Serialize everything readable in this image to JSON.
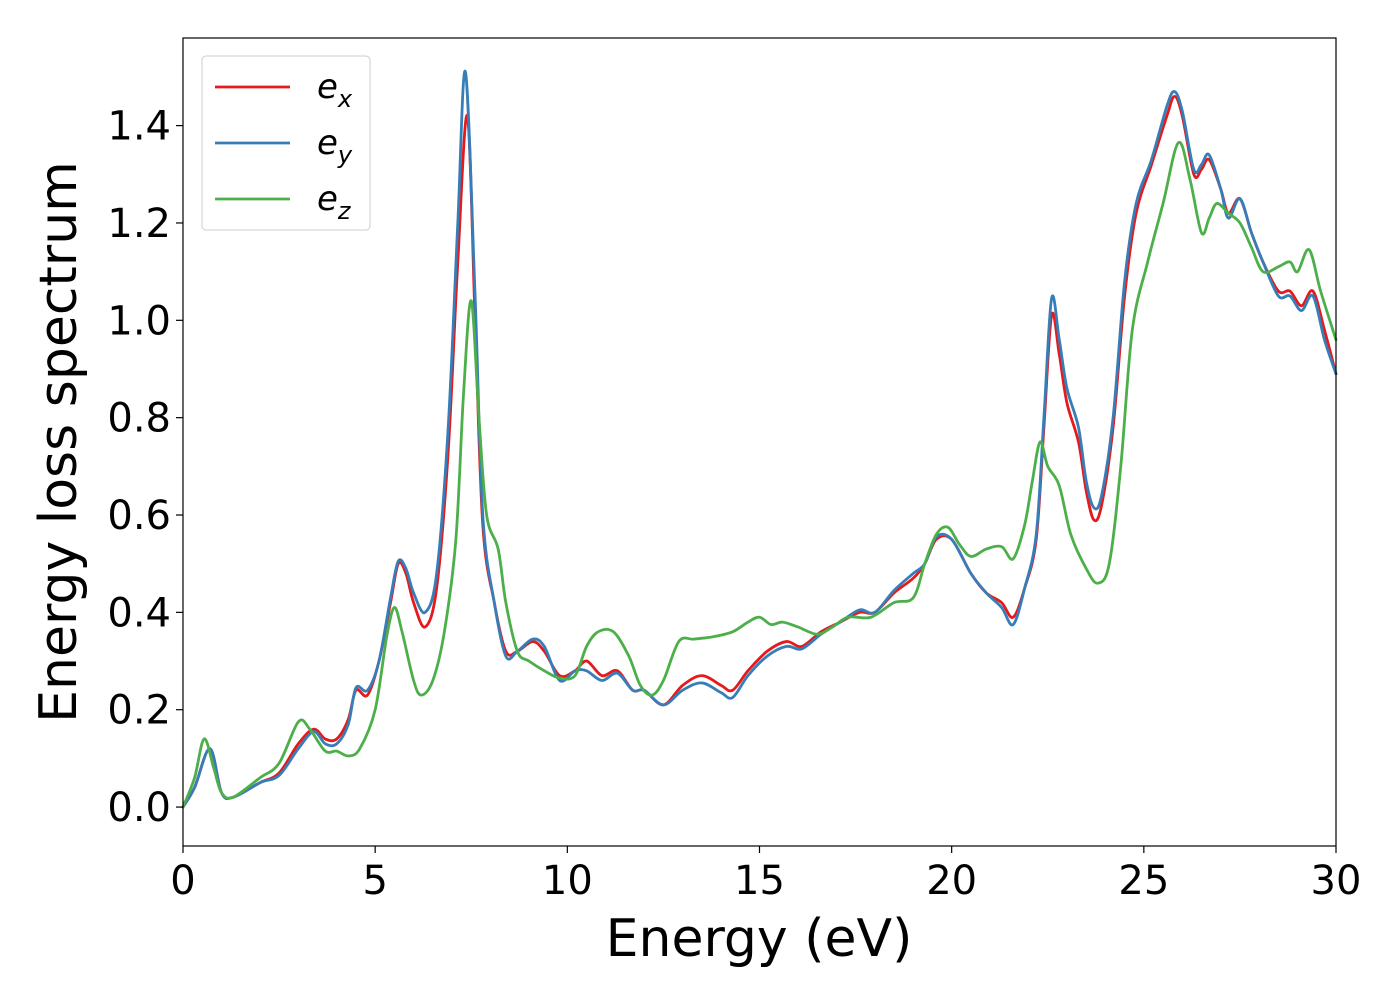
{
  "chart_data": {
    "type": "line",
    "xlabel": "Energy (eV)",
    "ylabel": "Energy loss spectrum",
    "xlim": [
      0,
      30
    ],
    "ylim": [
      -0.08,
      1.58
    ],
    "xticks": [
      0,
      5,
      10,
      15,
      20,
      25,
      30
    ],
    "xtick_labels": [
      "0",
      "5",
      "10",
      "15",
      "20",
      "25",
      "30"
    ],
    "yticks": [
      0.0,
      0.2,
      0.4,
      0.6,
      0.8,
      1.0,
      1.2,
      1.4
    ],
    "ytick_labels": [
      "0.0",
      "0.2",
      "0.4",
      "0.6",
      "0.8",
      "1.0",
      "1.2",
      "1.4"
    ],
    "grid": false,
    "legend_position": "top-left",
    "series": [
      {
        "name": "e_x",
        "legend_base": "e",
        "legend_sub": "x",
        "color": "#e41a1c",
        "points": [
          [
            0,
            0
          ],
          [
            0.3,
            0.04
          ],
          [
            0.7,
            0.12
          ],
          [
            1.0,
            0.03
          ],
          [
            1.3,
            0.02
          ],
          [
            2,
            0.05
          ],
          [
            2.5,
            0.07
          ],
          [
            3,
            0.13
          ],
          [
            3.4,
            0.16
          ],
          [
            3.7,
            0.14
          ],
          [
            4.0,
            0.14
          ],
          [
            4.3,
            0.18
          ],
          [
            4.5,
            0.24
          ],
          [
            4.8,
            0.23
          ],
          [
            5.1,
            0.3
          ],
          [
            5.4,
            0.42
          ],
          [
            5.6,
            0.5
          ],
          [
            5.8,
            0.48
          ],
          [
            6.0,
            0.42
          ],
          [
            6.3,
            0.37
          ],
          [
            6.6,
            0.45
          ],
          [
            6.9,
            0.73
          ],
          [
            7.15,
            1.12
          ],
          [
            7.4,
            1.42
          ],
          [
            7.6,
            1.0
          ],
          [
            7.8,
            0.58
          ],
          [
            8.1,
            0.42
          ],
          [
            8.4,
            0.32
          ],
          [
            8.7,
            0.32
          ],
          [
            9.1,
            0.34
          ],
          [
            9.4,
            0.32
          ],
          [
            9.8,
            0.27
          ],
          [
            10.2,
            0.28
          ],
          [
            10.5,
            0.3
          ],
          [
            10.9,
            0.27
          ],
          [
            11.3,
            0.28
          ],
          [
            11.7,
            0.24
          ],
          [
            12.0,
            0.24
          ],
          [
            12.5,
            0.21
          ],
          [
            13.0,
            0.25
          ],
          [
            13.5,
            0.27
          ],
          [
            14.0,
            0.25
          ],
          [
            14.3,
            0.24
          ],
          [
            14.7,
            0.28
          ],
          [
            15.2,
            0.32
          ],
          [
            15.7,
            0.34
          ],
          [
            16.1,
            0.33
          ],
          [
            16.6,
            0.36
          ],
          [
            17.1,
            0.38
          ],
          [
            17.6,
            0.4
          ],
          [
            18.0,
            0.4
          ],
          [
            18.5,
            0.44
          ],
          [
            19.0,
            0.47
          ],
          [
            19.3,
            0.5
          ],
          [
            19.6,
            0.55
          ],
          [
            20.0,
            0.55
          ],
          [
            20.5,
            0.48
          ],
          [
            20.9,
            0.44
          ],
          [
            21.3,
            0.42
          ],
          [
            21.6,
            0.39
          ],
          [
            21.9,
            0.45
          ],
          [
            22.2,
            0.55
          ],
          [
            22.4,
            0.78
          ],
          [
            22.6,
            1.01
          ],
          [
            22.8,
            0.93
          ],
          [
            23.0,
            0.83
          ],
          [
            23.3,
            0.75
          ],
          [
            23.5,
            0.65
          ],
          [
            23.7,
            0.59
          ],
          [
            23.9,
            0.62
          ],
          [
            24.2,
            0.78
          ],
          [
            24.5,
            1.05
          ],
          [
            24.8,
            1.22
          ],
          [
            25.2,
            1.32
          ],
          [
            25.6,
            1.42
          ],
          [
            25.8,
            1.46
          ],
          [
            26.0,
            1.42
          ],
          [
            26.3,
            1.3
          ],
          [
            26.5,
            1.31
          ],
          [
            26.7,
            1.33
          ],
          [
            27.0,
            1.27
          ],
          [
            27.2,
            1.22
          ],
          [
            27.5,
            1.25
          ],
          [
            27.8,
            1.18
          ],
          [
            28.1,
            1.12
          ],
          [
            28.5,
            1.06
          ],
          [
            28.8,
            1.06
          ],
          [
            29.1,
            1.03
          ],
          [
            29.4,
            1.06
          ],
          [
            29.7,
            0.98
          ],
          [
            30.0,
            0.89
          ]
        ]
      },
      {
        "name": "e_y",
        "legend_base": "e",
        "legend_sub": "y",
        "color": "#377eb8",
        "points": [
          [
            0,
            0
          ],
          [
            0.3,
            0.04
          ],
          [
            0.7,
            0.12
          ],
          [
            1.0,
            0.03
          ],
          [
            1.3,
            0.02
          ],
          [
            2,
            0.05
          ],
          [
            2.5,
            0.065
          ],
          [
            3,
            0.12
          ],
          [
            3.4,
            0.155
          ],
          [
            3.7,
            0.13
          ],
          [
            4.0,
            0.13
          ],
          [
            4.3,
            0.17
          ],
          [
            4.5,
            0.245
          ],
          [
            4.8,
            0.24
          ],
          [
            5.1,
            0.3
          ],
          [
            5.4,
            0.43
          ],
          [
            5.6,
            0.505
          ],
          [
            5.8,
            0.49
          ],
          [
            6.0,
            0.44
          ],
          [
            6.3,
            0.4
          ],
          [
            6.6,
            0.48
          ],
          [
            6.9,
            0.78
          ],
          [
            7.15,
            1.2
          ],
          [
            7.35,
            1.51
          ],
          [
            7.6,
            1.05
          ],
          [
            7.8,
            0.6
          ],
          [
            8.1,
            0.42
          ],
          [
            8.4,
            0.31
          ],
          [
            8.7,
            0.32
          ],
          [
            9.1,
            0.345
          ],
          [
            9.4,
            0.33
          ],
          [
            9.8,
            0.26
          ],
          [
            10.2,
            0.28
          ],
          [
            10.5,
            0.28
          ],
          [
            10.9,
            0.26
          ],
          [
            11.3,
            0.275
          ],
          [
            11.7,
            0.24
          ],
          [
            12.0,
            0.24
          ],
          [
            12.5,
            0.21
          ],
          [
            13.0,
            0.24
          ],
          [
            13.5,
            0.255
          ],
          [
            14.0,
            0.235
          ],
          [
            14.3,
            0.225
          ],
          [
            14.7,
            0.27
          ],
          [
            15.2,
            0.31
          ],
          [
            15.7,
            0.33
          ],
          [
            16.1,
            0.325
          ],
          [
            16.6,
            0.355
          ],
          [
            17.1,
            0.38
          ],
          [
            17.6,
            0.405
          ],
          [
            18.0,
            0.4
          ],
          [
            18.5,
            0.445
          ],
          [
            19.0,
            0.48
          ],
          [
            19.3,
            0.5
          ],
          [
            19.6,
            0.555
          ],
          [
            20.0,
            0.55
          ],
          [
            20.5,
            0.48
          ],
          [
            20.9,
            0.44
          ],
          [
            21.3,
            0.41
          ],
          [
            21.6,
            0.375
          ],
          [
            21.9,
            0.45
          ],
          [
            22.2,
            0.56
          ],
          [
            22.4,
            0.8
          ],
          [
            22.6,
            1.045
          ],
          [
            22.8,
            0.96
          ],
          [
            23.0,
            0.86
          ],
          [
            23.3,
            0.78
          ],
          [
            23.5,
            0.67
          ],
          [
            23.7,
            0.615
          ],
          [
            23.9,
            0.64
          ],
          [
            24.2,
            0.8
          ],
          [
            24.5,
            1.08
          ],
          [
            24.8,
            1.24
          ],
          [
            25.2,
            1.33
          ],
          [
            25.6,
            1.44
          ],
          [
            25.8,
            1.47
          ],
          [
            26.0,
            1.43
          ],
          [
            26.3,
            1.31
          ],
          [
            26.5,
            1.32
          ],
          [
            26.7,
            1.34
          ],
          [
            27.0,
            1.27
          ],
          [
            27.2,
            1.21
          ],
          [
            27.5,
            1.25
          ],
          [
            27.8,
            1.18
          ],
          [
            28.1,
            1.12
          ],
          [
            28.5,
            1.05
          ],
          [
            28.8,
            1.05
          ],
          [
            29.1,
            1.02
          ],
          [
            29.4,
            1.05
          ],
          [
            29.7,
            0.96
          ],
          [
            30.0,
            0.89
          ]
        ]
      },
      {
        "name": "e_z",
        "legend_base": "e",
        "legend_sub": "z",
        "color": "#4daf4a",
        "points": [
          [
            0,
            0
          ],
          [
            0.3,
            0.06
          ],
          [
            0.55,
            0.14
          ],
          [
            0.8,
            0.08
          ],
          [
            1.0,
            0.03
          ],
          [
            1.3,
            0.02
          ],
          [
            2,
            0.06
          ],
          [
            2.5,
            0.09
          ],
          [
            3.0,
            0.175
          ],
          [
            3.3,
            0.16
          ],
          [
            3.7,
            0.115
          ],
          [
            4.0,
            0.115
          ],
          [
            4.3,
            0.105
          ],
          [
            4.6,
            0.12
          ],
          [
            5.0,
            0.2
          ],
          [
            5.3,
            0.35
          ],
          [
            5.5,
            0.41
          ],
          [
            5.7,
            0.36
          ],
          [
            6.0,
            0.26
          ],
          [
            6.2,
            0.23
          ],
          [
            6.5,
            0.26
          ],
          [
            6.8,
            0.36
          ],
          [
            7.1,
            0.55
          ],
          [
            7.3,
            0.85
          ],
          [
            7.5,
            1.04
          ],
          [
            7.7,
            0.8
          ],
          [
            7.9,
            0.6
          ],
          [
            8.2,
            0.53
          ],
          [
            8.4,
            0.42
          ],
          [
            8.7,
            0.32
          ],
          [
            9.0,
            0.3
          ],
          [
            9.4,
            0.28
          ],
          [
            9.8,
            0.265
          ],
          [
            10.2,
            0.27
          ],
          [
            10.5,
            0.33
          ],
          [
            10.8,
            0.36
          ],
          [
            11.2,
            0.36
          ],
          [
            11.6,
            0.31
          ],
          [
            11.9,
            0.25
          ],
          [
            12.2,
            0.23
          ],
          [
            12.5,
            0.26
          ],
          [
            12.9,
            0.34
          ],
          [
            13.3,
            0.345
          ],
          [
            13.8,
            0.35
          ],
          [
            14.3,
            0.36
          ],
          [
            14.7,
            0.38
          ],
          [
            15.0,
            0.39
          ],
          [
            15.3,
            0.375
          ],
          [
            15.6,
            0.38
          ],
          [
            16.0,
            0.37
          ],
          [
            16.5,
            0.355
          ],
          [
            16.9,
            0.37
          ],
          [
            17.3,
            0.39
          ],
          [
            17.9,
            0.39
          ],
          [
            18.5,
            0.42
          ],
          [
            19.0,
            0.43
          ],
          [
            19.3,
            0.5
          ],
          [
            19.6,
            0.56
          ],
          [
            19.9,
            0.575
          ],
          [
            20.2,
            0.54
          ],
          [
            20.5,
            0.515
          ],
          [
            20.9,
            0.53
          ],
          [
            21.3,
            0.535
          ],
          [
            21.6,
            0.51
          ],
          [
            21.9,
            0.58
          ],
          [
            22.1,
            0.67
          ],
          [
            22.3,
            0.75
          ],
          [
            22.5,
            0.7
          ],
          [
            22.8,
            0.66
          ],
          [
            23.1,
            0.56
          ],
          [
            23.5,
            0.49
          ],
          [
            23.8,
            0.46
          ],
          [
            24.1,
            0.5
          ],
          [
            24.4,
            0.7
          ],
          [
            24.7,
            0.98
          ],
          [
            25.1,
            1.12
          ],
          [
            25.5,
            1.24
          ],
          [
            25.9,
            1.365
          ],
          [
            26.2,
            1.29
          ],
          [
            26.5,
            1.18
          ],
          [
            26.7,
            1.21
          ],
          [
            26.9,
            1.24
          ],
          [
            27.2,
            1.22
          ],
          [
            27.5,
            1.2
          ],
          [
            27.8,
            1.15
          ],
          [
            28.1,
            1.1
          ],
          [
            28.5,
            1.11
          ],
          [
            28.8,
            1.12
          ],
          [
            29.0,
            1.1
          ],
          [
            29.3,
            1.145
          ],
          [
            29.6,
            1.06
          ],
          [
            30.0,
            0.96
          ]
        ]
      }
    ]
  }
}
